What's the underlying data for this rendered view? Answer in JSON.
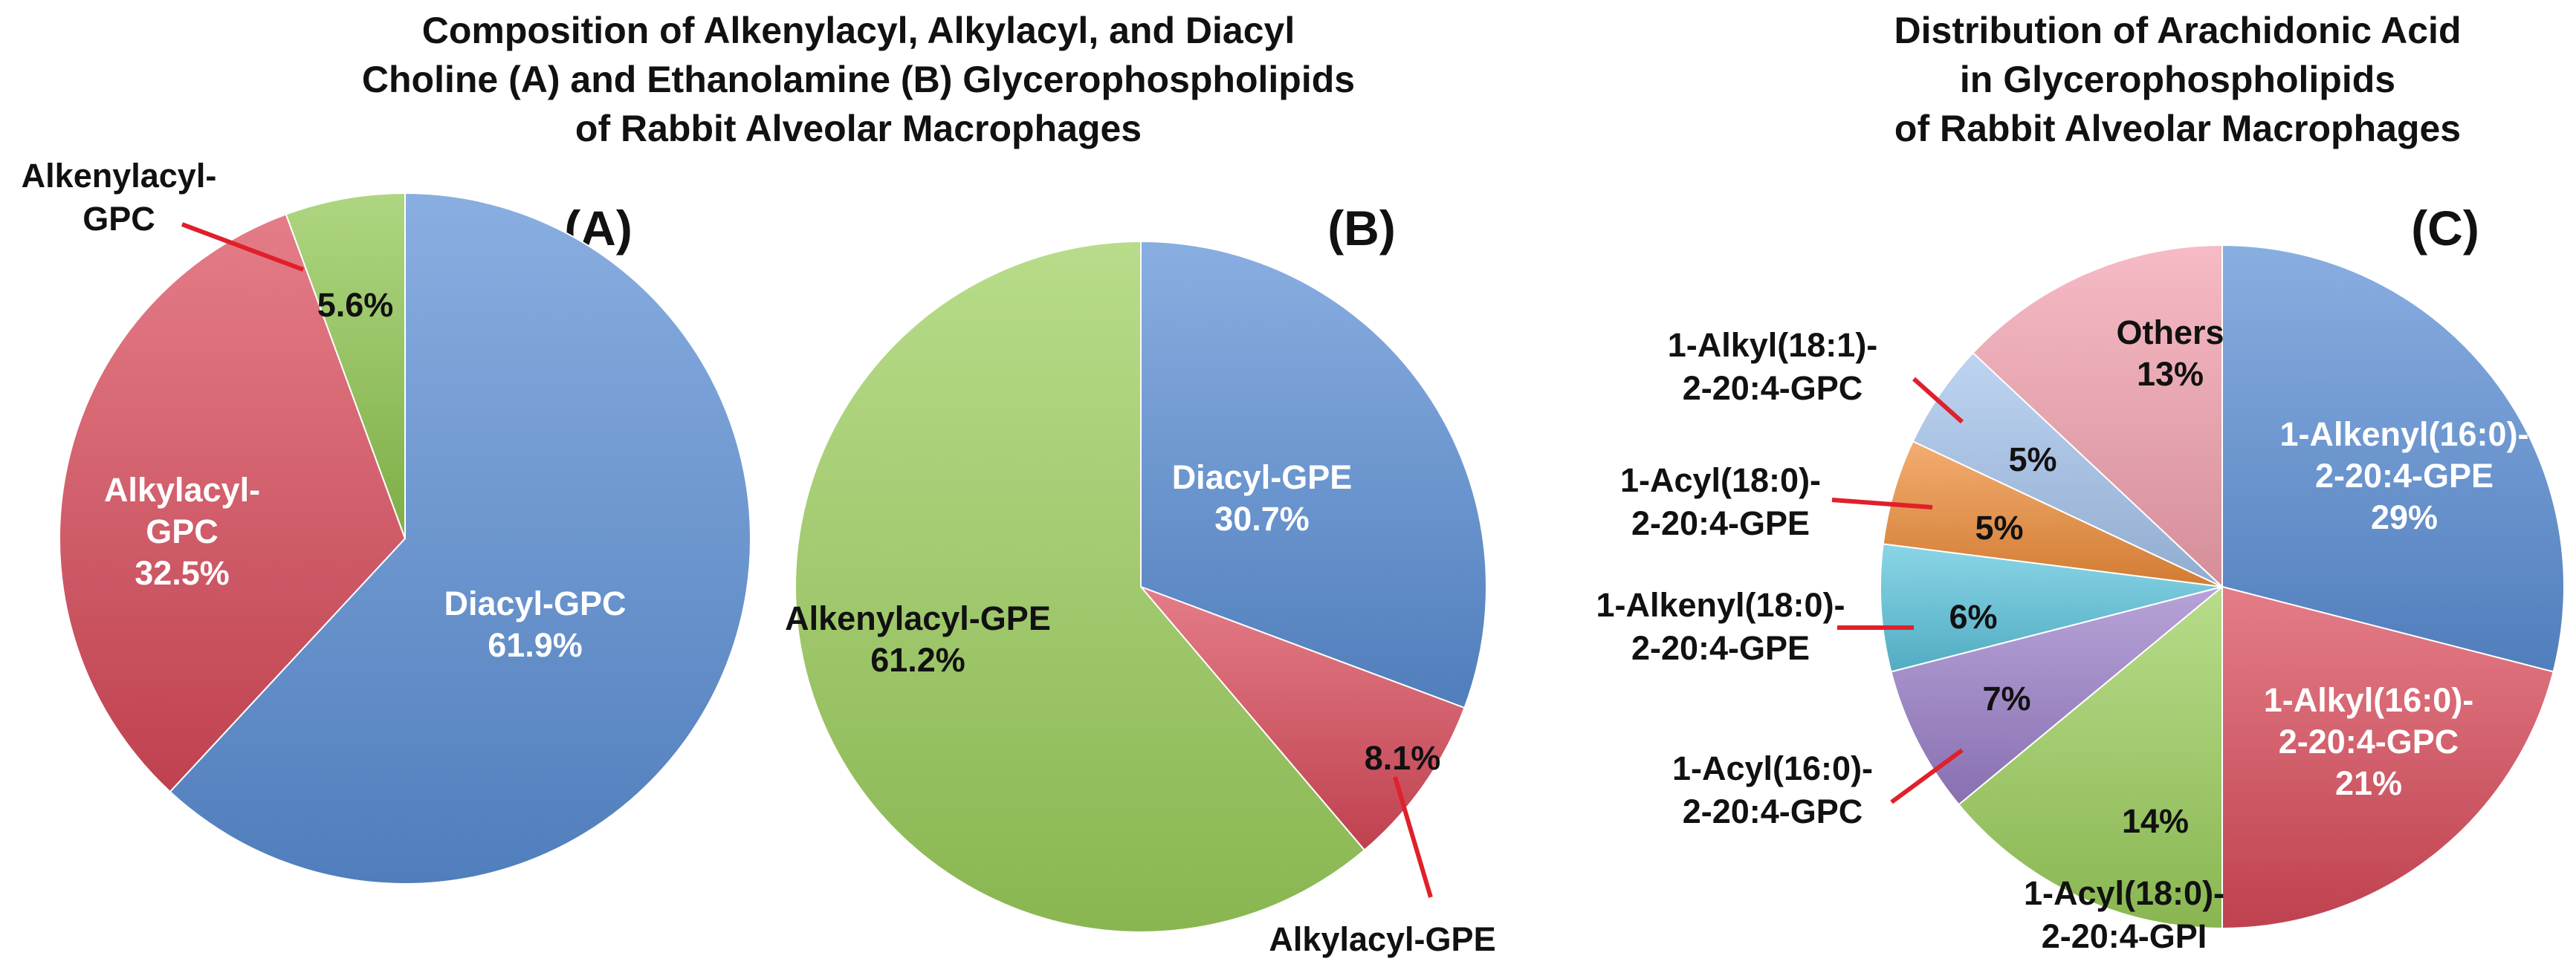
{
  "titles": {
    "left": [
      "Composition of Alkenylacyl, Alkylacyl, and Diacyl",
      "Choline (A) and Ethanolamine (B) Glycerophospholipids",
      "of Rabbit Alveolar Macrophages"
    ],
    "right": [
      "Distribution of Arachidonic Acid",
      "in Glycerophospholipids",
      "of Rabbit Alveolar Macrophages"
    ]
  },
  "chart_data": [
    {
      "type": "pie",
      "panel": "(A)",
      "slices": [
        {
          "name": "Diacyl-GPC",
          "lines": [
            "Diacyl-GPC",
            "61.9%"
          ],
          "value": 61.9,
          "color": "#5b8fd6"
        },
        {
          "name": "Alkylacyl-GPC",
          "lines": [
            "Alkylacyl-",
            "GPC",
            "32.5%"
          ],
          "value": 32.5,
          "color": "#d94a5a"
        },
        {
          "name": "Alkenylacyl-GPC",
          "lines": [
            "5.6%"
          ],
          "outside_lines": [
            "Alkenylacyl-",
            "GPC"
          ],
          "value": 5.6,
          "color": "#8fc650"
        }
      ]
    },
    {
      "type": "pie",
      "panel": "(B)",
      "slices": [
        {
          "name": "Diacyl-GPE",
          "lines": [
            "Diacyl-GPE",
            "30.7%"
          ],
          "value": 30.7,
          "color": "#5b8fd6"
        },
        {
          "name": "Alkylacyl-GPE",
          "lines": [
            "8.1%"
          ],
          "outside_lines": [
            "Alkylacyl-GPE"
          ],
          "value": 8.1,
          "color": "#d94a5a"
        },
        {
          "name": "Alkenylacyl-GPE",
          "lines": [
            "Alkenylacyl-GPE",
            "61.2%"
          ],
          "value": 61.2,
          "color": "#9ccf5c"
        }
      ]
    },
    {
      "type": "pie",
      "panel": "(C)",
      "slices": [
        {
          "name": "1-Alkenyl(16:0)-2-20:4-GPE",
          "lines": [
            "1-Alkenyl(16:0)-",
            "2-20:4-GPE",
            "29%"
          ],
          "value": 29,
          "color": "#5b8fd6"
        },
        {
          "name": "1-Alkyl(16:0)-2-20:4-GPC",
          "lines": [
            "1-Alkyl(16:0)-",
            "2-20:4-GPC",
            "21%"
          ],
          "value": 21,
          "color": "#d94a5a"
        },
        {
          "name": "1-Acyl(18:0)-2-20:4-GPI",
          "lines": [
            "14%"
          ],
          "outside_lines": [
            "1-Acyl(18:0)-",
            "2-20:4-GPI"
          ],
          "value": 14,
          "color": "#9ccf5c"
        },
        {
          "name": "1-Acyl(16:0)-2-20:4-GPC",
          "lines": [
            "7%"
          ],
          "outside_lines": [
            "1-Acyl(16:0)-",
            "2-20:4-GPC"
          ],
          "value": 7,
          "color": "#9b7fc9"
        },
        {
          "name": "1-Alkenyl(18:0)-2-20:4-GPE",
          "lines": [
            "6%"
          ],
          "outside_lines": [
            "1-Alkenyl(18:0)-",
            "2-20:4-GPE"
          ],
          "value": 6,
          "color": "#5cc4dd"
        },
        {
          "name": "1-Acyl(18:0)-2-20:4-GPE",
          "lines": [
            "5%"
          ],
          "outside_lines": [
            "1-Acyl(18:0)-",
            "2-20:4-GPE"
          ],
          "value": 5,
          "color": "#ef8d3a"
        },
        {
          "name": "1-Alkyl(18:1)-2-20:4-GPC",
          "lines": [
            "5%"
          ],
          "outside_lines": [
            "1-Alkyl(18:1)-",
            "2-20:4-GPC"
          ],
          "value": 5,
          "color": "#a5c3ec"
        },
        {
          "name": "Others",
          "lines": [
            "Others",
            "13%"
          ],
          "value": 13,
          "color": "#f2a1ae"
        }
      ]
    }
  ]
}
